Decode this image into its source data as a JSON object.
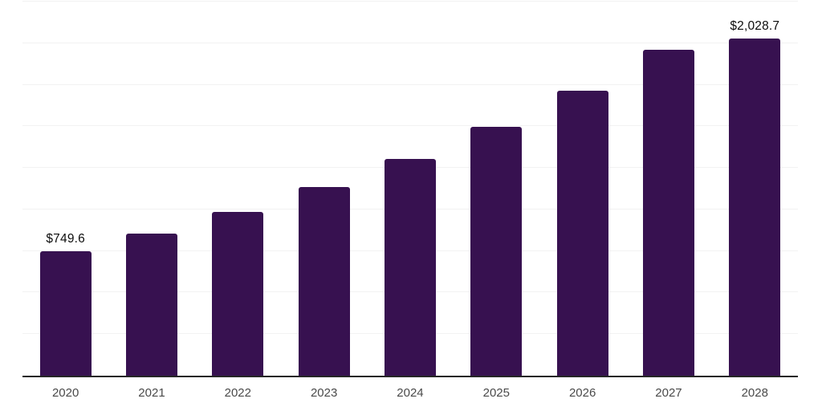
{
  "chart": {
    "background_color": "#ffffff",
    "bar_color": "#371150",
    "grid_color": "#f2f2f2",
    "axis_color": "#262626",
    "tick_label_color": "#4a4a4a",
    "value_label_color": "#0d0d0d"
  },
  "chart_data": {
    "type": "bar",
    "categories": [
      "2020",
      "2021",
      "2022",
      "2023",
      "2024",
      "2025",
      "2026",
      "2027",
      "2028"
    ],
    "values": [
      749.6,
      855,
      985,
      1135,
      1303,
      1497,
      1715,
      1960,
      2028.7
    ],
    "value_labels": [
      "$749.6",
      "",
      "",
      "",
      "",
      "",
      "",
      "",
      "$2,028.7"
    ],
    "title": "",
    "xlabel": "",
    "ylabel": "",
    "ylim": [
      0,
      2250
    ],
    "grid_step": 250,
    "grid": true,
    "legend_position": "none"
  }
}
